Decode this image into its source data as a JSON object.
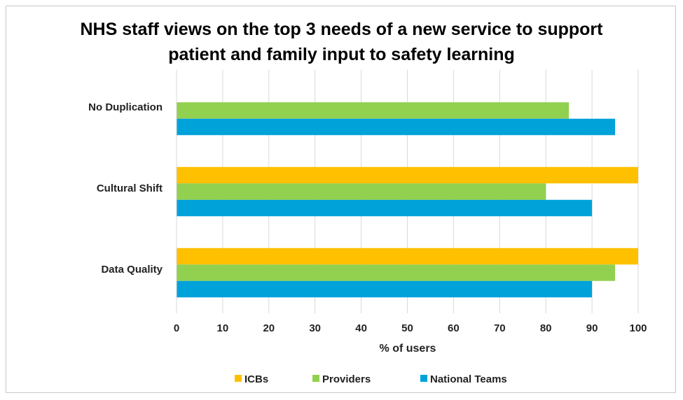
{
  "chart_data": {
    "type": "bar",
    "orientation": "horizontal",
    "title_lines": [
      "NHS staff views on the top 3 needs of a new service to support",
      "patient and family input to safety learning"
    ],
    "categories": [
      "No Duplication",
      "Cultural Shift",
      "Data Quality"
    ],
    "series": [
      {
        "name": "ICBs",
        "color": "#FFC000",
        "values": [
          null,
          100,
          100
        ]
      },
      {
        "name": "Providers",
        "color": "#92D050",
        "values": [
          85,
          80,
          95
        ]
      },
      {
        "name": "National Teams",
        "color": "#00A2DA",
        "values": [
          95,
          90,
          90
        ]
      }
    ],
    "x_ticks": [
      0,
      10,
      20,
      30,
      40,
      50,
      60,
      70,
      80,
      90,
      100
    ],
    "xlim": [
      0,
      100
    ],
    "xlabel": "% of users",
    "ylabel": "",
    "grid": true,
    "legend_position": "bottom"
  }
}
